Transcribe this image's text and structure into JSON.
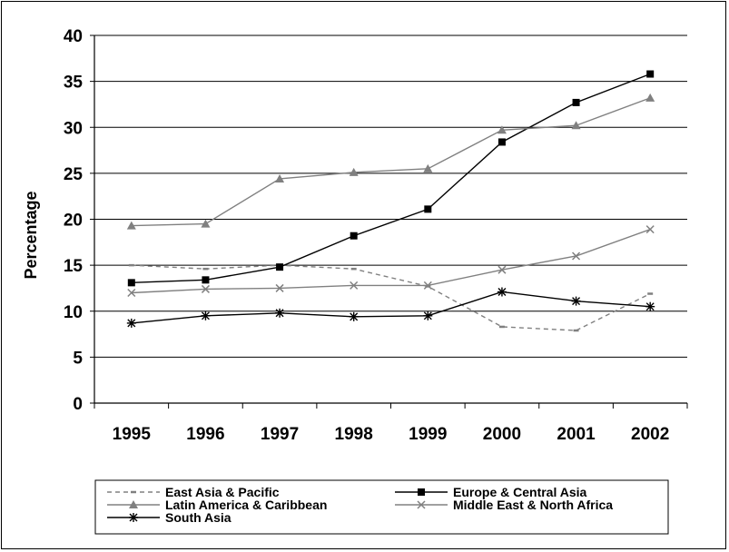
{
  "chart_data": {
    "type": "line",
    "title": "",
    "xlabel": "",
    "ylabel": "Percentage",
    "ylim": [
      0,
      40
    ],
    "yticks": [
      0,
      5,
      10,
      15,
      20,
      25,
      30,
      35,
      40
    ],
    "grid": true,
    "legend_position": "bottom",
    "categories": [
      "1995",
      "1996",
      "1997",
      "1998",
      "1999",
      "2000",
      "2001",
      "2002"
    ],
    "series": [
      {
        "name": "East Asia & Pacific",
        "values": [
          15.0,
          14.6,
          15.0,
          14.6,
          12.7,
          8.3,
          7.9,
          11.9
        ],
        "color": "#808080",
        "marker": "dash",
        "dashed": true
      },
      {
        "name": "Europe & Central Asia",
        "values": [
          13.1,
          13.4,
          14.8,
          18.2,
          21.1,
          28.4,
          32.7,
          35.8
        ],
        "color": "#000000",
        "marker": "square",
        "dashed": false
      },
      {
        "name": "Latin America & Caribbean",
        "values": [
          19.3,
          19.5,
          24.4,
          25.1,
          25.5,
          29.7,
          30.2,
          33.2
        ],
        "color": "#808080",
        "marker": "triangle",
        "dashed": false
      },
      {
        "name": "Middle East & North Africa",
        "values": [
          12.0,
          12.4,
          12.5,
          12.8,
          12.8,
          14.5,
          16.0,
          18.9
        ],
        "color": "#808080",
        "marker": "x",
        "dashed": false
      },
      {
        "name": "South Asia",
        "values": [
          8.7,
          9.5,
          9.8,
          9.4,
          9.5,
          12.1,
          11.1,
          10.5
        ],
        "color": "#000000",
        "marker": "star",
        "dashed": false
      }
    ]
  }
}
